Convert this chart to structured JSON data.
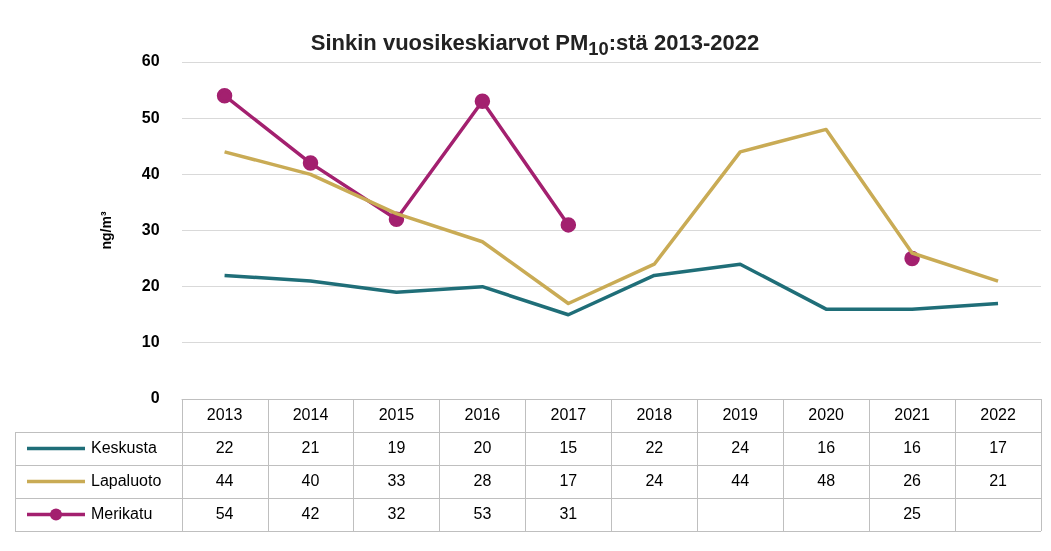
{
  "chart_data": {
    "type": "line",
    "title": "Sinkin vuosikeskiarvot PM$_{10}$:stä 2013-2022",
    "ylabel": "ng/m³",
    "categories": [
      "2013",
      "2014",
      "2015",
      "2016",
      "2017",
      "2018",
      "2019",
      "2020",
      "2021",
      "2022"
    ],
    "series": [
      {
        "name": "Keskusta",
        "color": "#1f6e78",
        "marker": "none",
        "values": [
          22,
          21,
          19,
          20,
          15,
          22,
          24,
          16,
          16,
          17
        ]
      },
      {
        "name": "Lapaluoto",
        "color": "#c9ab55",
        "marker": "none",
        "values": [
          44,
          40,
          33,
          28,
          17,
          24,
          44,
          48,
          26,
          21
        ]
      },
      {
        "name": "Merikatu",
        "color": "#a3206f",
        "marker": "circle",
        "values": [
          54,
          42,
          32,
          53,
          31,
          null,
          null,
          null,
          25,
          null
        ]
      }
    ],
    "ylim": [
      0,
      60
    ],
    "yticks": [
      0,
      10,
      20,
      30,
      40,
      50,
      60
    ],
    "grid": "y",
    "legend": "bottom",
    "data_labels": true,
    "line_style": "solid"
  }
}
